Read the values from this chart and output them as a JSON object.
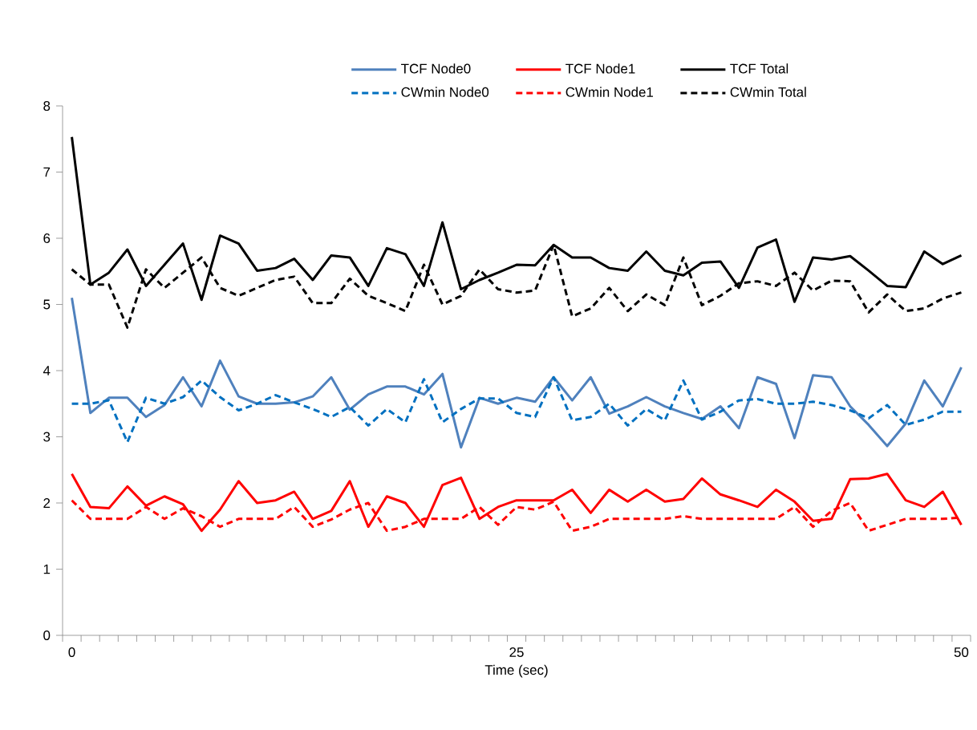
{
  "chart_data": {
    "type": "line",
    "xlabel": "Time (sec)",
    "categories": [
      "0",
      null,
      null,
      null,
      null,
      null,
      null,
      null,
      null,
      null,
      null,
      null,
      null,
      null,
      null,
      null,
      null,
      null,
      null,
      null,
      null,
      null,
      null,
      null,
      "25",
      null,
      null,
      null,
      null,
      null,
      null,
      null,
      null,
      null,
      null,
      null,
      null,
      null,
      null,
      null,
      null,
      null,
      null,
      null,
      null,
      null,
      null,
      null,
      "50"
    ],
    "ylim": [
      0,
      8
    ],
    "yticks": [
      0,
      1,
      2,
      3,
      4,
      5,
      6,
      7,
      8
    ],
    "legend": "top",
    "series": [
      {
        "name": "TCF Node0",
        "color": "#4f81bd",
        "line_style": "solid",
        "values": [
          5.1,
          3.36,
          3.59,
          3.59,
          3.3,
          3.48,
          3.9,
          3.46,
          4.15,
          3.61,
          3.5,
          3.5,
          3.52,
          3.61,
          3.9,
          3.41,
          3.64,
          3.76,
          3.76,
          3.64,
          3.95,
          2.84,
          3.59,
          3.5,
          3.59,
          3.53,
          3.9,
          3.55,
          3.9,
          3.35,
          3.46,
          3.6,
          3.46,
          3.36,
          3.27,
          3.46,
          3.13,
          3.9,
          3.8,
          2.98,
          3.93,
          3.9,
          3.46,
          3.18,
          2.86,
          3.2,
          3.85,
          3.46,
          4.05
        ]
      },
      {
        "name": "TCF Node1",
        "color": "#ff0000",
        "line_style": "solid",
        "values": [
          2.44,
          1.94,
          1.92,
          2.25,
          1.96,
          2.1,
          1.98,
          1.58,
          1.9,
          2.33,
          2.0,
          2.04,
          2.17,
          1.76,
          1.88,
          2.33,
          1.64,
          2.1,
          2.0,
          1.64,
          2.27,
          2.38,
          1.76,
          1.94,
          2.04,
          2.04,
          2.04,
          2.2,
          1.85,
          2.2,
          2.02,
          2.2,
          2.02,
          2.06,
          2.37,
          2.13,
          2.04,
          1.94,
          2.2,
          2.02,
          1.73,
          1.76,
          2.36,
          2.37,
          2.44,
          2.04,
          1.94,
          2.17,
          1.67
        ]
      },
      {
        "name": "TCF Total",
        "color": "#000000",
        "line_style": "solid",
        "values": [
          7.53,
          5.3,
          5.48,
          5.83,
          5.28,
          5.6,
          5.92,
          5.07,
          6.04,
          5.92,
          5.51,
          5.55,
          5.69,
          5.37,
          5.74,
          5.71,
          5.28,
          5.85,
          5.76,
          5.28,
          6.24,
          5.23,
          5.37,
          5.48,
          5.6,
          5.59,
          5.9,
          5.71,
          5.71,
          5.55,
          5.51,
          5.8,
          5.51,
          5.44,
          5.63,
          5.65,
          5.25,
          5.86,
          5.98,
          5.04,
          5.71,
          5.68,
          5.73,
          5.51,
          5.28,
          5.26,
          5.8,
          5.61,
          5.74
        ]
      },
      {
        "name": "CWmin Node0",
        "color": "#0070c0",
        "line_style": "dashed",
        "values": [
          3.5,
          3.5,
          3.55,
          2.92,
          3.59,
          3.5,
          3.6,
          3.85,
          3.6,
          3.4,
          3.5,
          3.63,
          3.52,
          3.42,
          3.3,
          3.45,
          3.17,
          3.42,
          3.22,
          3.87,
          3.22,
          3.42,
          3.58,
          3.58,
          3.36,
          3.3,
          3.9,
          3.25,
          3.3,
          3.5,
          3.17,
          3.42,
          3.25,
          3.85,
          3.26,
          3.38,
          3.55,
          3.57,
          3.5,
          3.5,
          3.53,
          3.48,
          3.4,
          3.28,
          3.48,
          3.18,
          3.26,
          3.38,
          3.38
        ]
      },
      {
        "name": "CWmin Node1",
        "color": "#ff0000",
        "line_style": "dashed",
        "values": [
          2.04,
          1.76,
          1.76,
          1.76,
          1.94,
          1.76,
          1.92,
          1.8,
          1.64,
          1.76,
          1.76,
          1.76,
          1.94,
          1.64,
          1.75,
          1.9,
          2.0,
          1.58,
          1.64,
          1.76,
          1.76,
          1.76,
          1.94,
          1.67,
          1.94,
          1.9,
          2.02,
          1.58,
          1.64,
          1.76,
          1.76,
          1.76,
          1.76,
          1.8,
          1.76,
          1.76,
          1.76,
          1.76,
          1.76,
          1.94,
          1.64,
          1.88,
          2.0,
          1.58,
          1.67,
          1.76,
          1.76,
          1.76,
          1.78
        ]
      },
      {
        "name": "CWmin Total",
        "color": "#000000",
        "line_style": "dashed",
        "values": [
          5.53,
          5.3,
          5.3,
          4.65,
          5.53,
          5.25,
          5.48,
          5.71,
          5.25,
          5.13,
          5.25,
          5.37,
          5.42,
          5.02,
          5.02,
          5.39,
          5.13,
          5.02,
          4.9,
          5.6,
          5.0,
          5.13,
          5.53,
          5.23,
          5.18,
          5.21,
          5.9,
          4.82,
          4.94,
          5.25,
          4.9,
          5.15,
          4.99,
          5.71,
          4.99,
          5.13,
          5.32,
          5.35,
          5.28,
          5.48,
          5.21,
          5.36,
          5.35,
          4.88,
          5.15,
          4.9,
          4.94,
          5.09,
          5.18
        ]
      }
    ]
  }
}
